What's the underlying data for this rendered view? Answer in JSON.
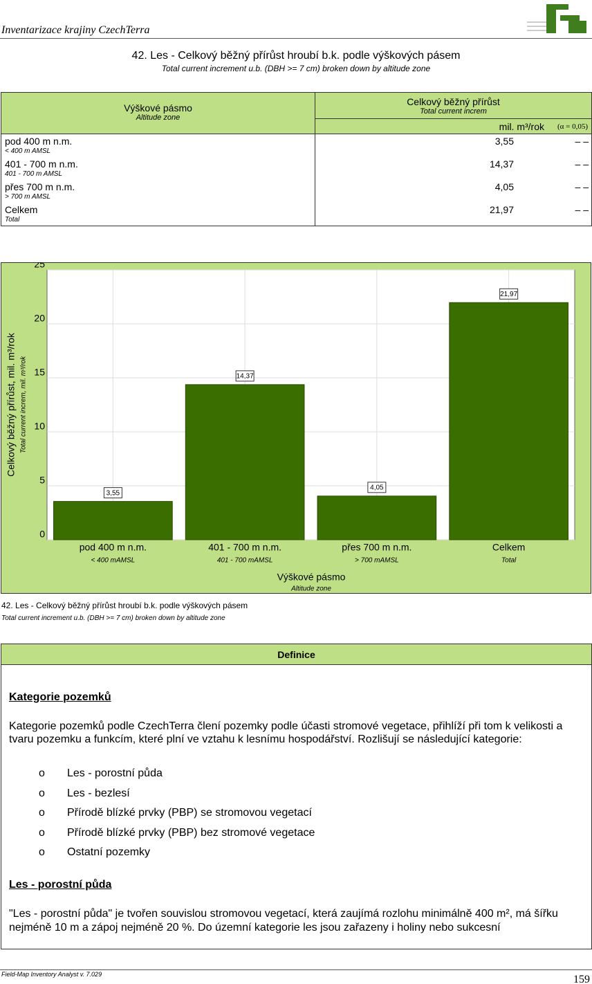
{
  "header": {
    "title": "Inventarizace krajiny CzechTerra"
  },
  "heading": {
    "title": "42. Les - Celkový běžný přírůst hroubí b.k. podle výškových pásem",
    "subtitle": "Total current increment u.b. (DBH >= 7 cm) broken down by altitude zone"
  },
  "table": {
    "col1": {
      "title": "Výškové pásmo",
      "subtitle": "Altitude zone"
    },
    "col2": {
      "title": "Celkový běžný přírůst",
      "subtitle": "Total current increm"
    },
    "unit": "mil. m³/rok",
    "alpha": "(α = 0,05)",
    "rows": [
      {
        "label": "pod 400 m n.m.",
        "sublabel": "< 400 m AMSL",
        "value": "3,55",
        "ci": "– –"
      },
      {
        "label": "401 - 700 m n.m.",
        "sublabel": "401 - 700 m AMSL",
        "value": "14,37",
        "ci": "– –"
      },
      {
        "label": "přes 700 m n.m.",
        "sublabel": "> 700 m AMSL",
        "value": "4,05",
        "ci": "– –"
      },
      {
        "label": "Celkem",
        "sublabel": "Total",
        "value": "21,97",
        "ci": "– –"
      }
    ]
  },
  "chart_data": {
    "type": "bar",
    "categories": [
      "pod 400 m n.m.",
      "401 - 700 m n.m.",
      "přes 700 m n.m.",
      "Celkem"
    ],
    "category_subtitles": [
      "< 400 mAMSL",
      "401 - 700 mAMSL",
      "> 700 mAMSL",
      "Total"
    ],
    "values": [
      3.55,
      14.37,
      4.05,
      21.97
    ],
    "value_labels": [
      "3,55",
      "14,37",
      "4,05",
      "21,97"
    ],
    "color": "#3b6e00",
    "ylim": [
      0,
      25
    ],
    "yticks": [
      0,
      5,
      10,
      15,
      20,
      25
    ],
    "grid": true,
    "ylabel": "Celkový běžný přírůst, mil. m³/rok",
    "ylabel_subtitle": "Total current increm, mil. m³/rok",
    "xlabel": "Výškové pásmo",
    "xlabel_subtitle": "Altitude zone"
  },
  "caption": {
    "title": "42. Les - Celkový běžný přírůst hroubí b.k. podle výškových pásem",
    "subtitle": "Total current increment u.b. (DBH >= 7 cm) broken down by altitude zone"
  },
  "definition": {
    "title": "Definice",
    "heading1": "Kategorie pozemků",
    "paragraph1": "Kategorie pozemků podle CzechTerra člení pozemky podle účasti stromové vegetace, přihlíží při tom k velikosti a tvaru pozemku a funkcím, které plní ve vztahu k lesnímu hospodářství. Rozlišují se následující kategorie:",
    "bullet": "o",
    "items": [
      "Les - porostní půda",
      "Les - bezlesí",
      "Přírodě blízké prvky (PBP) se stromovou vegetací",
      "Přírodě blízké prvky (PBP) bez stromové vegetace",
      "Ostatní pozemky"
    ],
    "heading2": "Les - porostní půda",
    "paragraph2": "\"Les - porostní půda\" je tvořen souvislou stromovou vegetací, která zaujímá rozlohu minimálně 400 m², má šířku nejméně 10 m a zápoj nejméně 20 %. Do územní kategorie les jsou zařazeny i holiny nebo sukcesní"
  },
  "footer": {
    "left": "Field-Map Inventory Analyst v. 7.029",
    "page": "159"
  }
}
